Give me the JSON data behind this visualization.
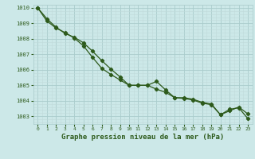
{
  "xlabel": "Graphe pression niveau de la mer (hPa)",
  "bg_color": "#cce8e8",
  "grid_major_color": "#aacccc",
  "grid_minor_color": "#c0dada",
  "line_color": "#2d5a1b",
  "ylim": [
    1002.5,
    1010.2
  ],
  "xlim": [
    -0.5,
    23.5
  ],
  "yticks": [
    1003,
    1004,
    1005,
    1006,
    1007,
    1008,
    1009,
    1010
  ],
  "xticks": [
    0,
    1,
    2,
    3,
    4,
    5,
    6,
    7,
    8,
    9,
    10,
    11,
    12,
    13,
    14,
    15,
    16,
    17,
    18,
    19,
    20,
    21,
    22,
    23
  ],
  "series1_x": [
    0,
    1,
    2,
    3,
    4,
    5,
    6,
    7,
    8,
    9,
    10,
    11,
    12,
    13,
    14,
    15,
    16,
    17,
    18,
    19,
    20,
    21,
    22,
    23
  ],
  "series1_y": [
    1010.0,
    1009.3,
    1008.75,
    1008.35,
    1008.1,
    1007.75,
    1007.2,
    1006.6,
    1006.05,
    1005.55,
    1005.0,
    1005.0,
    1005.0,
    1005.25,
    1004.7,
    1004.2,
    1004.2,
    1004.1,
    1003.9,
    1003.8,
    1003.1,
    1003.45,
    1003.55,
    1002.85
  ],
  "series2_x": [
    0,
    1,
    2,
    3,
    4,
    5,
    6,
    7,
    8,
    9,
    10,
    11,
    12,
    13,
    14,
    15,
    16,
    17,
    18,
    19,
    20,
    21,
    22,
    23
  ],
  "series2_y": [
    1010.0,
    1009.15,
    1008.7,
    1008.4,
    1008.05,
    1007.55,
    1006.8,
    1006.1,
    1005.7,
    1005.35,
    1005.0,
    1005.0,
    1005.0,
    1004.75,
    1004.55,
    1004.2,
    1004.15,
    1004.05,
    1003.85,
    1003.75,
    1003.1,
    1003.35,
    1003.6,
    1003.15
  ]
}
